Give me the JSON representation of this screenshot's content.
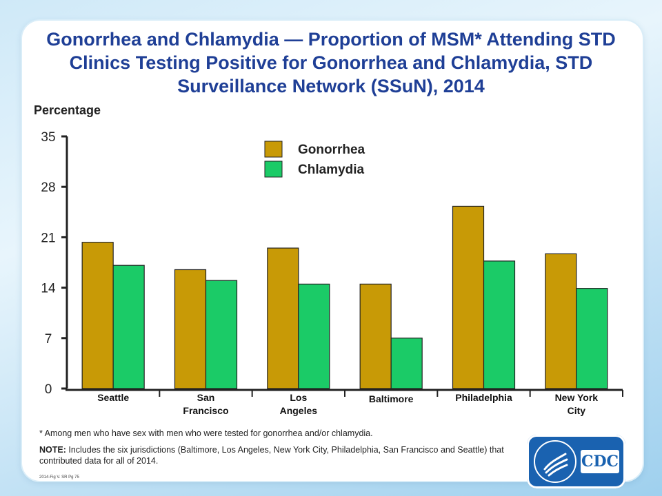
{
  "title": "Gonorrhea and Chlamydia — Proportion of MSM* Attending STD Clinics Testing Positive for Gonorrhea and Chlamydia, STD Surveillance Network (SSuN), 2014",
  "footnote": "* Among men who have sex with men who were tested for gonorrhea and/or chlamydia.",
  "note_label": "NOTE:",
  "note_text": " Includes the six jurisdictions (Baltimore, Los Angeles, New York City, Philadelphia, San Francisco and Seattle) that contributed data for all of 2014.",
  "source": "2014-Fig V. SR Pg 75",
  "logo_text": "CDC",
  "colors": {
    "gonorrhea": "#c89a06",
    "chlamydia": "#1bcb67",
    "title": "#1f3f96"
  },
  "chart_data": {
    "type": "bar",
    "ylabel": "Percentage",
    "xlabel": "",
    "ylim": [
      0,
      35
    ],
    "yticks": [
      0,
      7,
      14,
      21,
      28,
      35
    ],
    "grid": false,
    "legend_position": "top-center",
    "categories": [
      [
        "Seattle"
      ],
      [
        "San",
        "Francisco"
      ],
      [
        "Los",
        "Angeles"
      ],
      [
        "Baltimore"
      ],
      [
        "Philadelphia"
      ],
      [
        "New York",
        "City"
      ]
    ],
    "series": [
      {
        "name": "Gonorrhea",
        "color": "#c89a06",
        "values": [
          20.3,
          16.5,
          19.5,
          14.5,
          25.3,
          18.7
        ]
      },
      {
        "name": "Chlamydia",
        "color": "#1bcb67",
        "values": [
          17.1,
          15.0,
          14.5,
          7.0,
          17.7,
          13.9
        ]
      }
    ]
  }
}
